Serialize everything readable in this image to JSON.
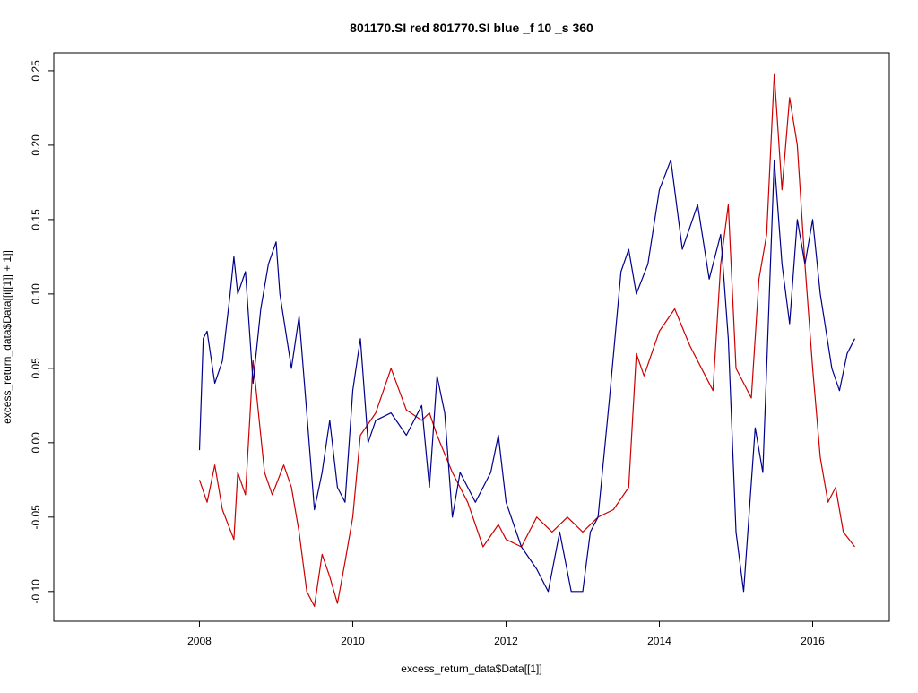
{
  "chart_data": {
    "type": "line",
    "title": "801170.SI red 801770.SI blue _f 10 _s 360",
    "xlabel": "excess_return_data$Data[[1]]",
    "ylabel": "excess_return_data$Data[[i[[1]] + 1]]",
    "xlim": [
      2006.1,
      2017.0
    ],
    "ylim": [
      -0.12,
      0.262
    ],
    "x_ticks": [
      2008,
      2010,
      2012,
      2014,
      2016
    ],
    "x_tick_labels": [
      "2008",
      "2010",
      "2012",
      "2014",
      "2016"
    ],
    "y_ticks": [
      -0.1,
      -0.05,
      0.0,
      0.05,
      0.1,
      0.15,
      0.2,
      0.25
    ],
    "y_tick_labels": [
      "-0.10",
      "-0.05",
      "0.00",
      "0.05",
      "0.10",
      "0.15",
      "0.20",
      "0.25"
    ],
    "grid": false,
    "legend": "none",
    "series": [
      {
        "color": "#cc0000",
        "x": [
          2008.0,
          2008.1,
          2008.2,
          2008.3,
          2008.45,
          2008.5,
          2008.6,
          2008.7,
          2008.75,
          2008.85,
          2008.95,
          2009.1,
          2009.2,
          2009.3,
          2009.4,
          2009.5,
          2009.6,
          2009.7,
          2009.8,
          2009.9,
          2010.0,
          2010.1,
          2010.3,
          2010.5,
          2010.7,
          2010.9,
          2011.0,
          2011.1,
          2011.3,
          2011.5,
          2011.7,
          2011.9,
          2012.0,
          2012.2,
          2012.4,
          2012.6,
          2012.8,
          2012.9,
          2013.0,
          2013.2,
          2013.4,
          2013.6,
          2013.7,
          2013.8,
          2014.0,
          2014.2,
          2014.4,
          2014.6,
          2014.7,
          2014.8,
          2014.9,
          2015.0,
          2015.2,
          2015.3,
          2015.4,
          2015.5,
          2015.6,
          2015.7,
          2015.8,
          2015.9,
          2016.0,
          2016.1,
          2016.2,
          2016.3,
          2016.4,
          2016.55
        ],
        "values": [
          -0.025,
          -0.04,
          -0.015,
          -0.045,
          -0.065,
          -0.02,
          -0.035,
          0.055,
          0.03,
          -0.02,
          -0.035,
          -0.015,
          -0.03,
          -0.06,
          -0.1,
          -0.11,
          -0.075,
          -0.09,
          -0.108,
          -0.08,
          -0.05,
          0.005,
          0.02,
          0.05,
          0.022,
          0.015,
          0.02,
          0.005,
          -0.02,
          -0.04,
          -0.07,
          -0.055,
          -0.065,
          -0.07,
          -0.05,
          -0.06,
          -0.05,
          -0.055,
          -0.06,
          -0.05,
          -0.045,
          -0.03,
          0.06,
          0.045,
          0.075,
          0.09,
          0.065,
          0.045,
          0.035,
          0.12,
          0.16,
          0.05,
          0.03,
          0.11,
          0.14,
          0.248,
          0.17,
          0.232,
          0.2,
          0.12,
          0.05,
          -0.01,
          -0.04,
          -0.03,
          -0.06,
          -0.07
        ]
      },
      {
        "color": "#00008b",
        "x": [
          2008.0,
          2008.05,
          2008.1,
          2008.2,
          2008.3,
          2008.4,
          2008.45,
          2008.5,
          2008.6,
          2008.7,
          2008.8,
          2008.9,
          2009.0,
          2009.05,
          2009.2,
          2009.3,
          2009.4,
          2009.5,
          2009.6,
          2009.7,
          2009.8,
          2009.9,
          2010.0,
          2010.1,
          2010.2,
          2010.3,
          2010.5,
          2010.7,
          2010.9,
          2011.0,
          2011.1,
          2011.2,
          2011.3,
          2011.4,
          2011.6,
          2011.8,
          2011.9,
          2012.0,
          2012.2,
          2012.4,
          2012.55,
          2012.7,
          2012.85,
          2013.0,
          2013.1,
          2013.2,
          2013.35,
          2013.5,
          2013.6,
          2013.7,
          2013.85,
          2014.0,
          2014.15,
          2014.3,
          2014.5,
          2014.65,
          2014.8,
          2014.9,
          2015.0,
          2015.1,
          2015.25,
          2015.35,
          2015.5,
          2015.6,
          2015.7,
          2015.8,
          2015.9,
          2016.0,
          2016.1,
          2016.25,
          2016.35,
          2016.45,
          2016.55
        ],
        "values": [
          -0.005,
          0.07,
          0.075,
          0.04,
          0.055,
          0.1,
          0.125,
          0.1,
          0.115,
          0.04,
          0.09,
          0.12,
          0.135,
          0.1,
          0.05,
          0.085,
          0.02,
          -0.045,
          -0.02,
          0.015,
          -0.03,
          -0.04,
          0.035,
          0.07,
          0.0,
          0.015,
          0.02,
          0.005,
          0.025,
          -0.03,
          0.045,
          0.02,
          -0.05,
          -0.02,
          -0.04,
          -0.02,
          0.005,
          -0.04,
          -0.07,
          -0.085,
          -0.1,
          -0.06,
          -0.1,
          -0.1,
          -0.06,
          -0.05,
          0.03,
          0.115,
          0.13,
          0.1,
          0.12,
          0.17,
          0.19,
          0.13,
          0.16,
          0.11,
          0.14,
          0.07,
          -0.06,
          -0.1,
          0.01,
          -0.02,
          0.19,
          0.12,
          0.08,
          0.15,
          0.12,
          0.15,
          0.1,
          0.05,
          0.035,
          0.06,
          0.07
        ]
      }
    ]
  }
}
